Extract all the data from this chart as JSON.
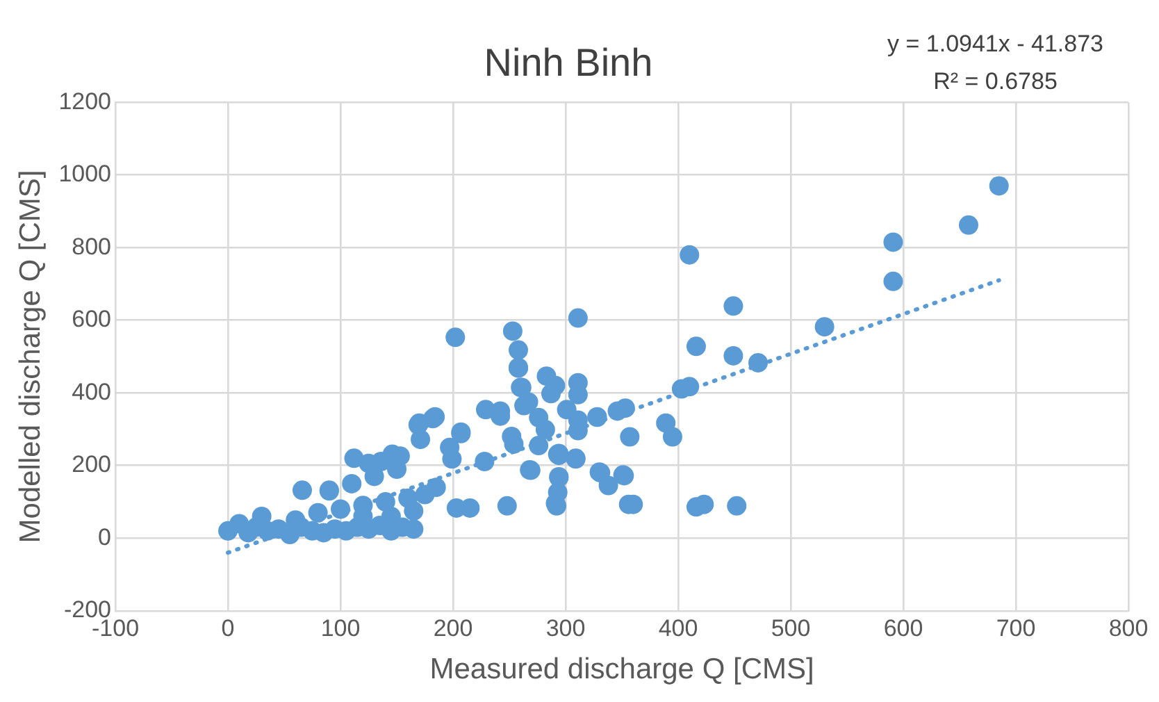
{
  "chart_data": {
    "type": "scatter",
    "title": "Ninh Binh",
    "xlabel": "Measured discharge Q [CMS]",
    "ylabel": "Modelled discharge Q [CMS]",
    "annotations": [
      "y = 1.0941x - 41.873",
      "R² = 0.6785"
    ],
    "xlim": [
      -100,
      800
    ],
    "xticks": [
      -100,
      0,
      100,
      200,
      300,
      400,
      500,
      600,
      700,
      800
    ],
    "ylim": [
      -200,
      1200
    ],
    "yticks": [
      -200,
      0,
      200,
      400,
      600,
      800,
      1000,
      1200
    ],
    "grid": true,
    "legend": false,
    "marker": "circle",
    "series": [
      {
        "color": "#5b9bd5",
        "x": [
          685,
          658,
          591,
          591,
          530,
          449,
          410,
          416,
          449,
          471,
          410,
          403,
          311,
          202,
          253,
          258,
          258,
          261,
          291,
          311,
          311,
          287,
          267,
          263,
          242,
          311,
          311,
          328,
          353,
          357,
          395,
          276,
          282,
          276,
          254,
          294,
          309,
          269,
          294,
          331,
          351,
          169,
          184,
          171,
          207,
          197,
          112,
          136,
          153,
          228,
          452,
          416,
          423,
          356,
          360,
          338,
          352,
          330,
          389,
          292,
          293,
          294,
          294,
          309,
          328,
          346,
          283,
          66,
          90,
          146,
          170,
          182,
          207,
          229,
          242,
          260,
          258,
          301,
          293,
          268,
          248,
          291,
          203,
          215,
          252,
          199,
          125,
          0,
          10,
          18,
          25,
          35,
          45,
          55,
          65,
          75,
          85,
          95,
          105,
          115,
          125,
          135,
          145,
          155,
          165,
          30,
          60,
          80,
          100,
          120,
          140,
          160,
          90,
          110,
          130,
          150,
          175,
          185,
          120,
          145,
          165
        ],
        "values": [
          970,
          862,
          815,
          707,
          582,
          639,
          780,
          528,
          502,
          483,
          417,
          411,
          606,
          553,
          570,
          518,
          468,
          415,
          420,
          428,
          395,
          398,
          375,
          365,
          336,
          325,
          296,
          334,
          358,
          279,
          279,
          332,
          299,
          255,
          259,
          233,
          220,
          187,
          167,
          180,
          174,
          312,
          334,
          272,
          288,
          250,
          220,
          211,
          226,
          211,
          89,
          86,
          93,
          93,
          93,
          145,
          172,
          182,
          317,
          89,
          126,
          169,
          228,
          218,
          333,
          350,
          446,
          132,
          132,
          231,
          317,
          329,
          292,
          354,
          350,
          415,
          470,
          354,
          231,
          188,
          89,
          96,
          83,
          83,
          280,
          218,
          206,
          20,
          40,
          15,
          30,
          20,
          25,
          10,
          30,
          20,
          15,
          25,
          20,
          30,
          25,
          35,
          20,
          30,
          25,
          60,
          50,
          70,
          80,
          90,
          100,
          110,
          130,
          150,
          170,
          190,
          120,
          140,
          60,
          60,
          75
        ]
      },
      {
        "type": "line",
        "color": "#5b9bd5",
        "line_style": "dotted",
        "marker": "none",
        "x": [
          0,
          685
        ],
        "values": [
          -40,
          710
        ]
      }
    ]
  }
}
